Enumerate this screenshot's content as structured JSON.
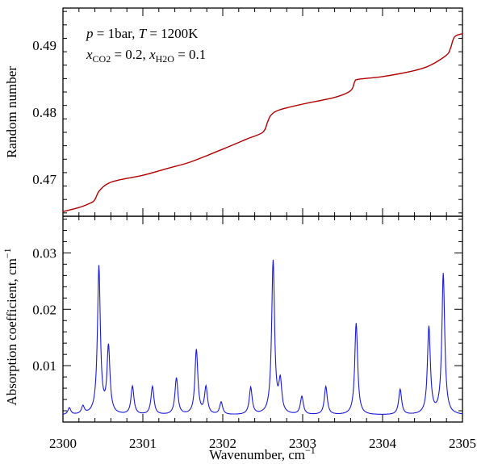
{
  "chart_data": [
    {
      "type": "line",
      "ylabel": "Random number",
      "xlim": [
        2300,
        2305
      ],
      "ylim": [
        0.4645,
        0.4955
      ],
      "yticks": [
        0.47,
        0.48,
        0.49
      ],
      "ytick_labels": [
        "0.47",
        "0.48",
        "0.49"
      ],
      "annotation_line1": {
        "p": "p",
        "eq1": " = 1bar, ",
        "T": "T",
        "eq2": " = 1200K"
      },
      "annotation_line2": {
        "x1": "x",
        "sub1": "CO2",
        "eq1": " = 0.2, ",
        "x2": "x",
        "sub2": "H2O",
        "eq2": " = 0.1"
      },
      "color": "#b00000",
      "series": [
        {
          "x": [
            2300.0,
            2300.2,
            2300.35,
            2300.4,
            2300.45,
            2300.55,
            2300.7,
            2301.0,
            2301.3,
            2301.6,
            2302.0,
            2302.3,
            2302.5,
            2302.56,
            2302.6,
            2302.7,
            2303.0,
            2303.4,
            2303.6,
            2303.65,
            2303.7,
            2304.0,
            2304.4,
            2304.6,
            2304.8,
            2304.85,
            2304.9,
            2305.0
          ],
          "y": [
            0.4652,
            0.4658,
            0.4665,
            0.467,
            0.4682,
            0.4693,
            0.4699,
            0.4706,
            0.4716,
            0.4726,
            0.4745,
            0.476,
            0.477,
            0.4785,
            0.4795,
            0.4803,
            0.4812,
            0.4822,
            0.4832,
            0.4845,
            0.4849,
            0.4853,
            0.4862,
            0.487,
            0.4885,
            0.4895,
            0.4912,
            0.4917
          ]
        }
      ]
    },
    {
      "type": "line",
      "xlabel": "Wavenumber, cm",
      "xlabel_sup": "−1",
      "ylabel": "Absorption coefficient, cm",
      "ylabel_sup": "−1",
      "xlim": [
        2300,
        2305
      ],
      "ylim": [
        0.0,
        0.0365
      ],
      "xticks": [
        2300,
        2301,
        2302,
        2303,
        2304,
        2305
      ],
      "xtick_labels": [
        "2300",
        "2301",
        "2302",
        "2303",
        "2304",
        "2305"
      ],
      "yticks": [
        0.01,
        0.02,
        0.03
      ],
      "ytick_labels": [
        "0.01",
        "0.02",
        "0.03"
      ],
      "color": "#1a1adc",
      "baseline": 0.0012,
      "peaks": [
        {
          "x": 2300.08,
          "h": 0.0012
        },
        {
          "x": 2300.25,
          "h": 0.0014
        },
        {
          "x": 2300.45,
          "h": 0.0262
        },
        {
          "x": 2300.57,
          "h": 0.0118
        },
        {
          "x": 2300.87,
          "h": 0.005
        },
        {
          "x": 2301.12,
          "h": 0.005
        },
        {
          "x": 2301.42,
          "h": 0.0065
        },
        {
          "x": 2301.67,
          "h": 0.0115
        },
        {
          "x": 2301.79,
          "h": 0.0048
        },
        {
          "x": 2301.98,
          "h": 0.0022
        },
        {
          "x": 2302.35,
          "h": 0.0048
        },
        {
          "x": 2302.63,
          "h": 0.0272
        },
        {
          "x": 2302.72,
          "h": 0.0055
        },
        {
          "x": 2302.99,
          "h": 0.0032
        },
        {
          "x": 2303.29,
          "h": 0.005
        },
        {
          "x": 2303.67,
          "h": 0.0163
        },
        {
          "x": 2304.22,
          "h": 0.0045
        },
        {
          "x": 2304.58,
          "h": 0.0155
        },
        {
          "x": 2304.76,
          "h": 0.025
        }
      ]
    }
  ]
}
